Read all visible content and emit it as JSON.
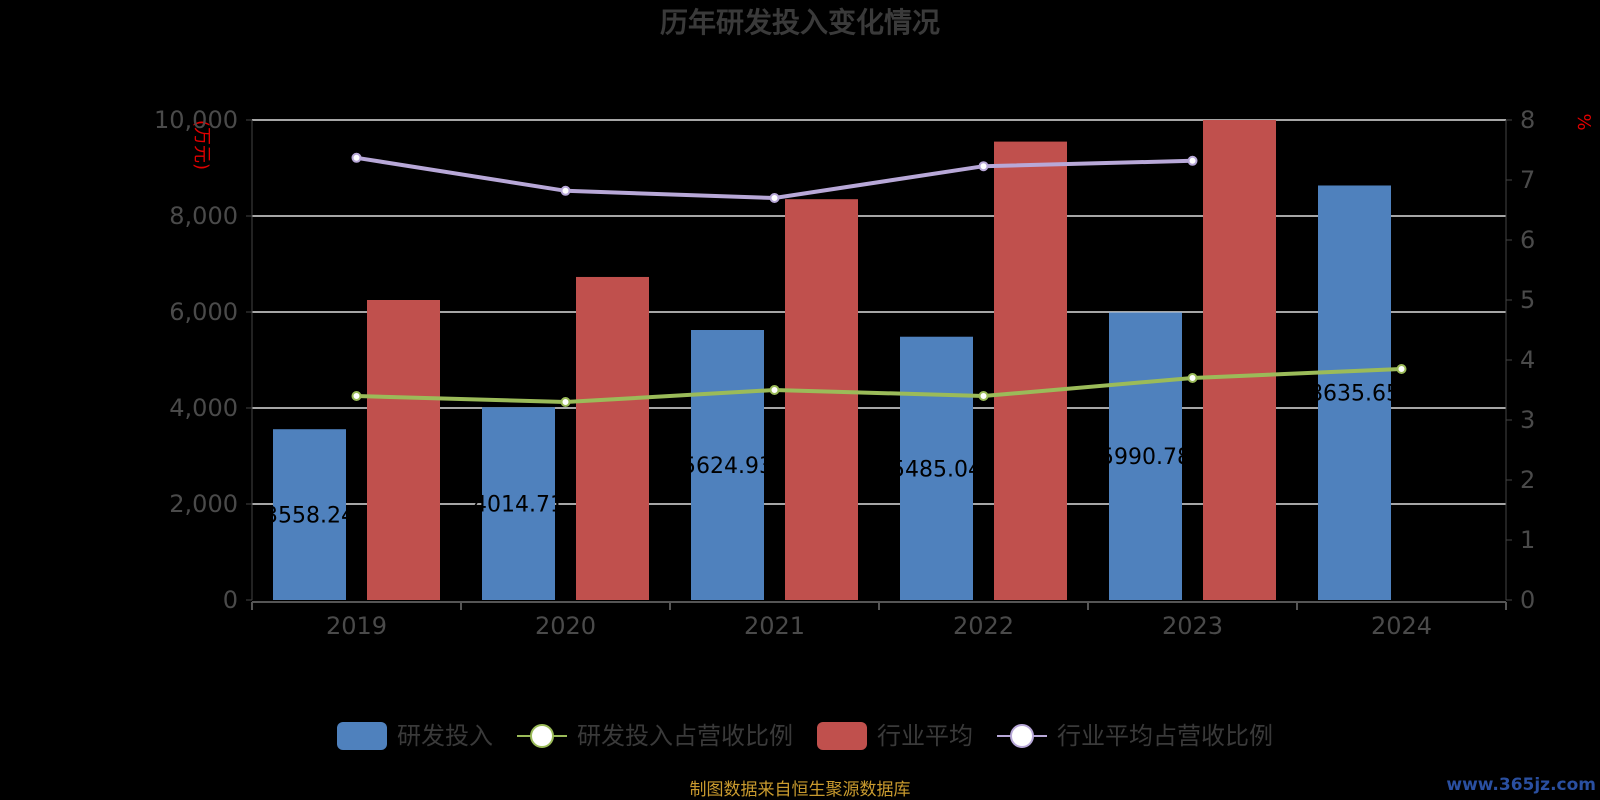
{
  "chart_data": {
    "type": "bar",
    "title": "历年研发投入变化情况",
    "left_axis_unit": "(万元)",
    "right_axis_unit": "%",
    "categories": [
      "2019",
      "2020",
      "2021",
      "2022",
      "2023",
      "2024"
    ],
    "left_ylim": [
      0,
      10000
    ],
    "left_ticks": [
      "0",
      "2,000",
      "4,000",
      "6,000",
      "8,000",
      "10,000"
    ],
    "right_ylim": [
      0,
      8
    ],
    "right_ticks": [
      "0",
      "1",
      "2",
      "3",
      "4",
      "5",
      "6",
      "7",
      "8"
    ],
    "grid": true,
    "legend_position": "bottom",
    "series": [
      {
        "name": "研发投入",
        "kind": "bar",
        "axis": "left",
        "color": "#4f81bd",
        "values": [
          3558.24,
          4014.71,
          5624.93,
          5485.04,
          5990.78,
          8635.65
        ],
        "labels": [
          "3558.24",
          "4014.71",
          "5624.93",
          "5485.04",
          "5990.78",
          "8635.65"
        ]
      },
      {
        "name": "研发投入占营收比例",
        "kind": "line",
        "axis": "right",
        "color": "#9bbb59",
        "values": [
          3.4,
          3.3,
          3.5,
          3.4,
          3.7,
          3.85
        ]
      },
      {
        "name": "行业平均",
        "kind": "bar",
        "axis": "left",
        "color": "#c0504d",
        "values": [
          6250,
          6730,
          8350,
          9550,
          10000,
          null
        ]
      },
      {
        "name": "行业平均占营收比例",
        "kind": "line",
        "axis": "right",
        "color": "#b8a8d8",
        "values": [
          7.37,
          6.82,
          6.7,
          7.23,
          7.32,
          null
        ]
      }
    ]
  },
  "footer": {
    "source": "制图数据来自恒生聚源数据库",
    "watermark": "www.365jz.com"
  }
}
